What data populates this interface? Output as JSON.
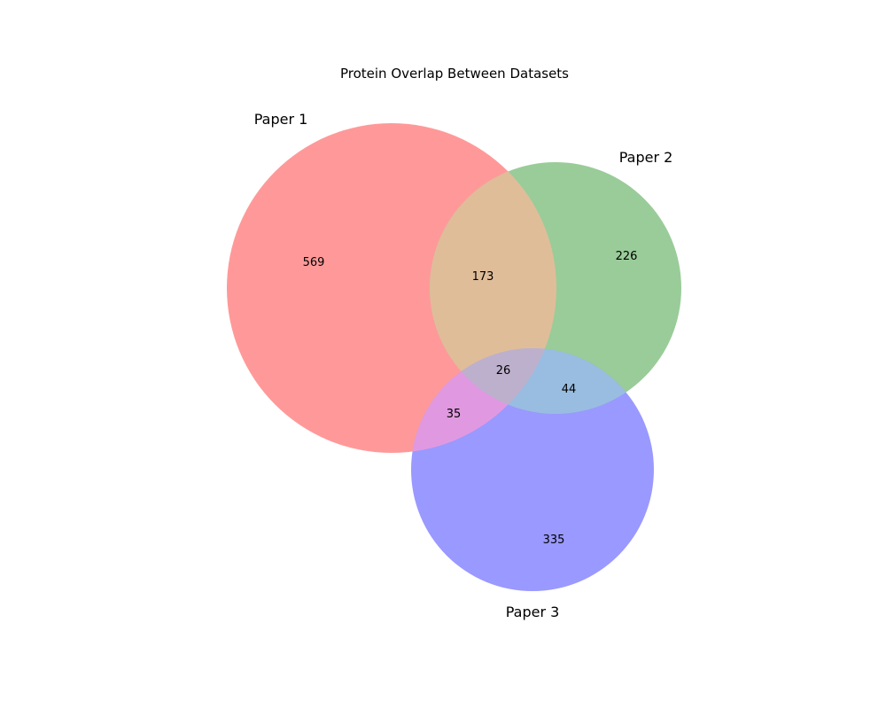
{
  "title": "Protein Overlap Between Datasets",
  "sets": [
    {
      "name": "Paper 1",
      "color": "#ff9999"
    },
    {
      "name": "Paper 2",
      "color": "#99cc99"
    },
    {
      "name": "Paper 3",
      "color": "#9999ff"
    }
  ],
  "regions": {
    "only_1": "569",
    "only_2": "226",
    "only_3": "335",
    "1_and_2": "173",
    "1_and_3": "35",
    "2_and_3": "44",
    "all_three": "26"
  },
  "region_colors": {
    "1_and_2": "#e0bd99",
    "1_and_3": "#e099e0",
    "2_and_3": "#99bde0",
    "all_three": "#bdb0cc"
  }
}
